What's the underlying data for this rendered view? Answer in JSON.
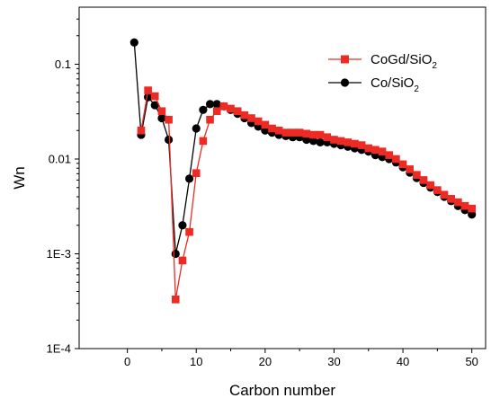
{
  "chart_data": {
    "type": "line",
    "title": "",
    "xlabel": "Carbon number",
    "ylabel": "Wn",
    "xlim": [
      -7,
      52
    ],
    "ylim": [
      0.0001,
      0.4
    ],
    "y_scale": "log",
    "x_ticks": [
      0,
      10,
      20,
      30,
      40,
      50
    ],
    "x_tick_labels": [
      "0",
      "10",
      "20",
      "30",
      "40",
      "50"
    ],
    "y_ticks": [
      0.0001,
      0.001,
      0.01,
      0.1
    ],
    "y_tick_labels": [
      "1E-4",
      "1E-3",
      "0.01",
      "0.1"
    ],
    "grid": false,
    "legend_position": "top-right",
    "series": [
      {
        "name": "CoGd/SiO₂",
        "legend_main": "CoGd/SiO",
        "legend_sub": "2",
        "color": "#ee2a24",
        "marker": "square",
        "x": [
          2,
          3,
          4,
          5,
          6,
          7,
          8,
          9,
          10,
          11,
          12,
          13,
          14,
          15,
          16,
          17,
          18,
          19,
          20,
          21,
          22,
          23,
          24,
          25,
          26,
          27,
          28,
          29,
          30,
          31,
          32,
          33,
          34,
          35,
          36,
          37,
          38,
          39,
          40,
          41,
          42,
          43,
          44,
          45,
          46,
          47,
          48,
          49,
          50
        ],
        "y": [
          0.02,
          0.053,
          0.046,
          0.032,
          0.026,
          0.00033,
          0.00085,
          0.0017,
          0.0071,
          0.0155,
          0.026,
          0.032,
          0.036,
          0.034,
          0.032,
          0.029,
          0.027,
          0.025,
          0.023,
          0.021,
          0.02,
          0.019,
          0.019,
          0.019,
          0.0185,
          0.018,
          0.018,
          0.017,
          0.016,
          0.0155,
          0.015,
          0.0145,
          0.014,
          0.013,
          0.0125,
          0.012,
          0.011,
          0.01,
          0.0088,
          0.0078,
          0.0068,
          0.006,
          0.0053,
          0.0047,
          0.0042,
          0.0038,
          0.0035,
          0.0032,
          0.003
        ]
      },
      {
        "name": "Co/SiO₂",
        "legend_main": "Co/SiO",
        "legend_sub": "2",
        "color": "#000000",
        "marker": "circle",
        "x": [
          1,
          2,
          3,
          4,
          5,
          6,
          7,
          8,
          9,
          10,
          11,
          12,
          13,
          14,
          15,
          16,
          17,
          18,
          19,
          20,
          21,
          22,
          23,
          24,
          25,
          26,
          27,
          28,
          29,
          30,
          31,
          32,
          33,
          34,
          35,
          36,
          37,
          38,
          39,
          40,
          41,
          42,
          43,
          44,
          45,
          46,
          47,
          48,
          49,
          50
        ],
        "y": [
          0.17,
          0.018,
          0.045,
          0.037,
          0.027,
          0.016,
          0.001,
          0.002,
          0.0062,
          0.021,
          0.033,
          0.038,
          0.038,
          0.036,
          0.033,
          0.03,
          0.027,
          0.024,
          0.022,
          0.02,
          0.019,
          0.018,
          0.0175,
          0.017,
          0.017,
          0.016,
          0.0155,
          0.015,
          0.015,
          0.0145,
          0.014,
          0.0135,
          0.013,
          0.0125,
          0.012,
          0.011,
          0.0105,
          0.01,
          0.0092,
          0.0082,
          0.0072,
          0.0063,
          0.0056,
          0.005,
          0.0045,
          0.004,
          0.0036,
          0.0032,
          0.0029,
          0.0026
        ]
      }
    ]
  }
}
